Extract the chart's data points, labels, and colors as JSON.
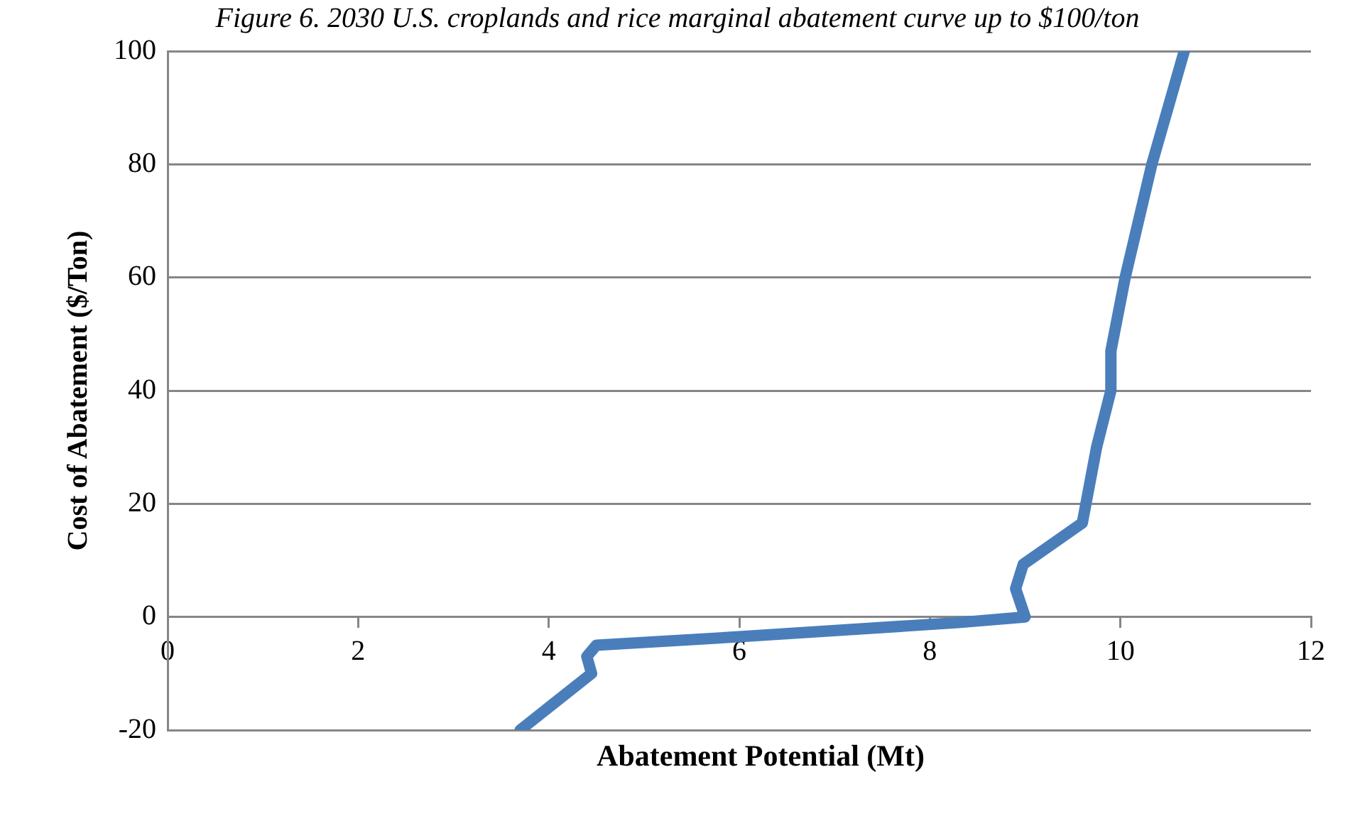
{
  "chart_data": {
    "type": "line",
    "title": "Figure 6. 2030 U.S. croplands and rice marginal abatement curve up to $100/ton",
    "xlabel": "Abatement Potential (Mt)",
    "ylabel": "Cost of Abatement ($/Ton)",
    "series": [
      {
        "color": "#4a7ebb",
        "x": [
          3.7,
          4.45,
          4.4,
          4.5,
          6,
          8.3,
          9.0,
          8.9,
          8.98,
          9.6,
          9.75,
          9.9,
          9.9,
          10.05,
          10.33,
          10.67
        ],
        "values": [
          -20,
          -10,
          -7,
          -5,
          -3.5,
          -1,
          0,
          5,
          9.3,
          16.6,
          30,
          40,
          47,
          60,
          80,
          100
        ]
      }
    ],
    "xlim": [
      0,
      12
    ],
    "xticks": [
      0,
      2,
      4,
      6,
      8,
      10,
      12
    ],
    "ylim": [
      -20,
      100
    ],
    "yticks": [
      -20,
      0,
      20,
      40,
      60,
      80,
      100
    ],
    "grid": "y",
    "legend": false,
    "marker": "none",
    "line_style": "solid"
  }
}
